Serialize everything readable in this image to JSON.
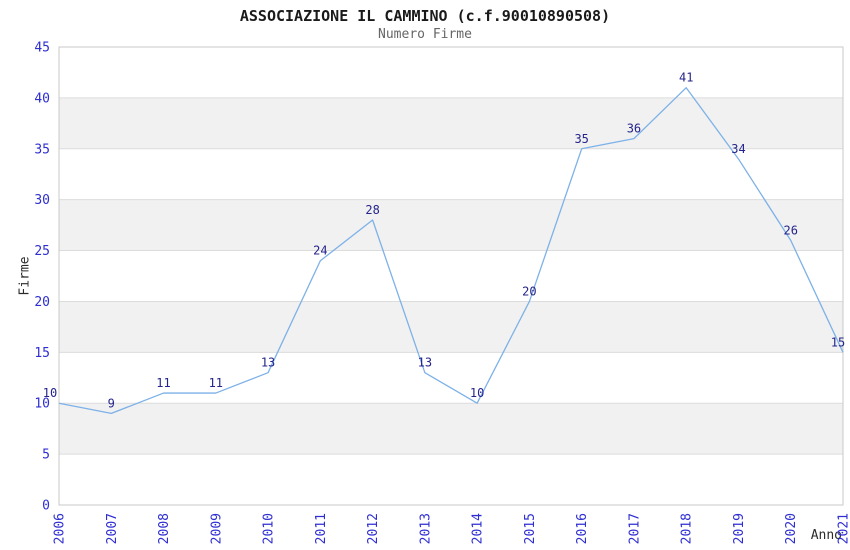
{
  "header": {
    "title": "ASSOCIAZIONE IL CAMMINO (c.f.90010890508)",
    "subtitle": "Numero Firme"
  },
  "chart_data": {
    "type": "line",
    "title": "ASSOCIAZIONE IL CAMMINO (c.f.90010890508)",
    "subtitle": "Numero Firme",
    "xlabel": "Anno",
    "ylabel": "Firme",
    "categories": [
      "2006",
      "2007",
      "2008",
      "2009",
      "2010",
      "2011",
      "2012",
      "2013",
      "2014",
      "2015",
      "2016",
      "2017",
      "2018",
      "2019",
      "2020",
      "2021"
    ],
    "values": [
      10,
      9,
      11,
      11,
      13,
      24,
      28,
      13,
      10,
      20,
      35,
      36,
      41,
      34,
      26,
      15
    ],
    "ylim": [
      0,
      45
    ],
    "ytick_step": 5,
    "yticks": [
      0,
      5,
      10,
      15,
      20,
      25,
      30,
      35,
      40,
      45
    ],
    "grid": "horizontal gridlines with alternating shaded bands",
    "legend": "none",
    "point_markers": "none",
    "data_labels": "above points",
    "x_tick_rotation_deg": 90,
    "colors": {
      "line": "#7db1e8",
      "point_label": "#24248c",
      "tick_label": "#2e2ed2",
      "axis_title": "#2b2b2b",
      "title": "#1a1a1a",
      "subtitle": "#666666",
      "band_fill": "#f1f1f1",
      "gridline": "#dcdcdc",
      "plot_border": "#c9c9c9",
      "background": "#ffffff"
    }
  }
}
